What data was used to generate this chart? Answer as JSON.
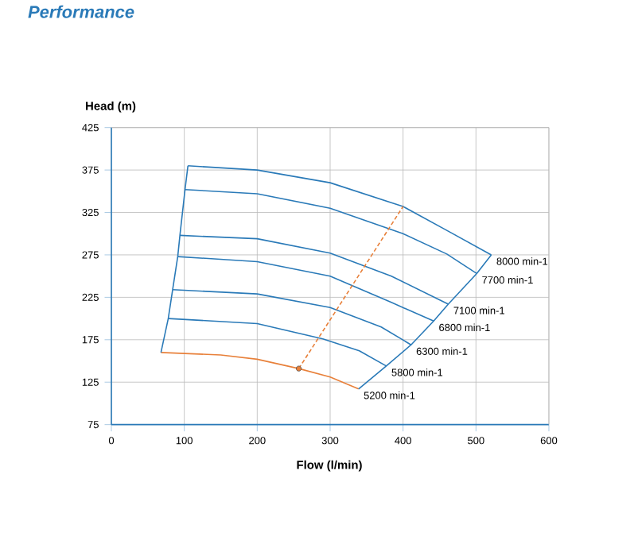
{
  "chart_data": {
    "type": "line",
    "title": "Performance",
    "xlabel": "Flow (l/min)",
    "ylabel": "Head (m)",
    "xlim": [
      0,
      600
    ],
    "xticks": [
      0,
      100,
      200,
      300,
      400,
      500,
      600
    ],
    "ylim": [
      75,
      425
    ],
    "yticks": [
      75,
      125,
      175,
      225,
      275,
      325,
      375,
      425
    ],
    "grid": true,
    "series": [
      {
        "name": "8000 min-1",
        "color": "#2a7ab8",
        "x": [
          105,
          200,
          300,
          400,
          464,
          521
        ],
        "values": [
          380,
          375,
          360,
          332,
          302,
          275
        ]
      },
      {
        "name": "7700 min-1",
        "color": "#2a7ab8",
        "x": [
          101,
          200,
          300,
          400,
          460,
          501
        ],
        "values": [
          352,
          347,
          330,
          300,
          276,
          253
        ]
      },
      {
        "name": "7100 min-1",
        "color": "#2a7ab8",
        "x": [
          94,
          200,
          300,
          384,
          462
        ],
        "values": [
          298,
          294,
          277,
          250,
          217
        ]
      },
      {
        "name": "6800 min-1",
        "color": "#2a7ab8",
        "x": [
          91,
          200,
          300,
          384,
          442
        ],
        "values": [
          273,
          267,
          250,
          219,
          197
        ]
      },
      {
        "name": "6300 min-1",
        "color": "#2a7ab8",
        "x": [
          84,
          200,
          300,
          370,
          411
        ],
        "values": [
          234,
          229,
          213,
          190,
          169
        ]
      },
      {
        "name": "5800 min-1",
        "color": "#2a7ab8",
        "x": [
          78,
          200,
          290,
          340,
          377
        ],
        "values": [
          200,
          194,
          176,
          162,
          144
        ]
      },
      {
        "name": "5200 min-1",
        "color": "#e8803a",
        "x": [
          68,
          150,
          200,
          257,
          300,
          339
        ],
        "values": [
          160,
          157,
          152,
          141,
          131,
          117
        ]
      },
      {
        "color": "#2a7ab8",
        "x": [
          68,
          78,
          84,
          91,
          94,
          101,
          105
        ],
        "values": [
          160,
          200,
          234,
          273,
          298,
          352,
          380
        ]
      },
      {
        "color": "#2a7ab8",
        "x": [
          339,
          377,
          411,
          442,
          462,
          501,
          521
        ],
        "values": [
          117,
          144,
          169,
          197,
          217,
          253,
          275
        ]
      },
      {
        "color": "#e8803a",
        "line_style": "dashed",
        "x": [
          257,
          400
        ],
        "values": [
          141,
          332
        ]
      },
      {
        "type": "scatter",
        "marker": "circle",
        "color": "#e8803a",
        "x": [
          257
        ],
        "values": [
          141
        ]
      }
    ]
  }
}
